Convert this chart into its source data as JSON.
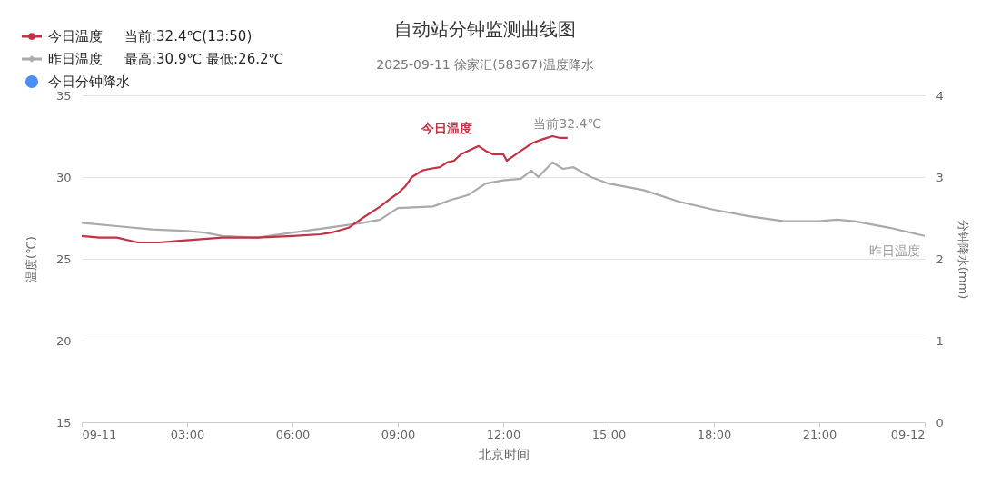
{
  "chart_data": {
    "type": "line",
    "title": "自动站分钟监测曲线图",
    "subtitle": "2025-09-11 徐家汇(58367)温度降水",
    "xlabel": "北京时间",
    "ylabel": "温度(℃)",
    "y2label": "分钟降水(mm)",
    "xlim": [
      0,
      24
    ],
    "xticks": [
      {
        "value": 0,
        "label": "09-11"
      },
      {
        "value": 3,
        "label": "03:00"
      },
      {
        "value": 6,
        "label": "06:00"
      },
      {
        "value": 9,
        "label": "09:00"
      },
      {
        "value": 12,
        "label": "12:00"
      },
      {
        "value": 15,
        "label": "15:00"
      },
      {
        "value": 18,
        "label": "18:00"
      },
      {
        "value": 21,
        "label": "21:00"
      },
      {
        "value": 24,
        "label": "09-12"
      }
    ],
    "ylim": [
      15,
      35
    ],
    "yticks": [
      15,
      20,
      25,
      30,
      35
    ],
    "y2lim": [
      0,
      4
    ],
    "y2ticks": [
      0,
      1,
      2,
      3,
      4
    ],
    "grid": "y",
    "legend": "top left",
    "line_style": "solid",
    "series": [
      {
        "name": "今日温度",
        "color": "#c23145",
        "x": [
          0,
          0.5,
          1.0,
          1.4,
          1.6,
          2.2,
          2.8,
          3.4,
          4.0,
          5.0,
          6.0,
          6.8,
          7.1,
          7.6,
          8.0,
          8.5,
          8.8,
          9.0,
          9.2,
          9.4,
          9.7,
          9.9,
          10.2,
          10.4,
          10.6,
          10.8,
          11.0,
          11.3,
          11.5,
          11.7,
          12.0,
          12.1,
          12.3,
          12.5,
          12.85,
          13.1,
          13.4,
          13.6,
          13.83
        ],
        "values": [
          26.4,
          26.3,
          26.3,
          26.1,
          26.0,
          26.0,
          26.1,
          26.2,
          26.3,
          26.3,
          26.4,
          26.5,
          26.6,
          26.9,
          27.5,
          28.2,
          28.7,
          29.0,
          29.4,
          30.0,
          30.4,
          30.5,
          30.6,
          30.9,
          31.0,
          31.4,
          31.6,
          31.9,
          31.6,
          31.4,
          31.4,
          31.0,
          31.3,
          31.6,
          32.1,
          32.3,
          32.5,
          32.4,
          32.4
        ]
      },
      {
        "name": "昨日温度",
        "color": "#aaaaaa",
        "x": [
          0,
          1,
          2,
          3,
          3.5,
          4,
          5,
          6,
          7,
          8,
          8.5,
          9,
          10,
          10.5,
          11,
          11.5,
          12,
          12.5,
          12.8,
          13,
          13.4,
          13.7,
          14,
          14.5,
          15,
          16,
          17,
          18,
          19,
          20,
          21,
          21.5,
          22,
          23,
          24
        ],
        "values": [
          27.2,
          27.0,
          26.8,
          26.7,
          26.6,
          26.4,
          26.3,
          26.6,
          26.9,
          27.2,
          27.4,
          28.1,
          28.2,
          28.6,
          28.9,
          29.6,
          29.8,
          29.9,
          30.4,
          30.0,
          30.9,
          30.5,
          30.6,
          30.0,
          29.6,
          29.2,
          28.5,
          28.0,
          27.6,
          27.3,
          27.3,
          27.4,
          27.3,
          26.9,
          26.4
        ]
      },
      {
        "name": "今日分钟降水",
        "color": "#4c8ef7",
        "type": "scatter",
        "axis": "y2"
      }
    ],
    "annotations": [
      "当前:32.4℃(13:50)",
      "最高:30.9℃ 最低:26.2℃",
      {
        "text": "当前32.4℃",
        "x": 13.83,
        "y": 32.4
      }
    ]
  }
}
